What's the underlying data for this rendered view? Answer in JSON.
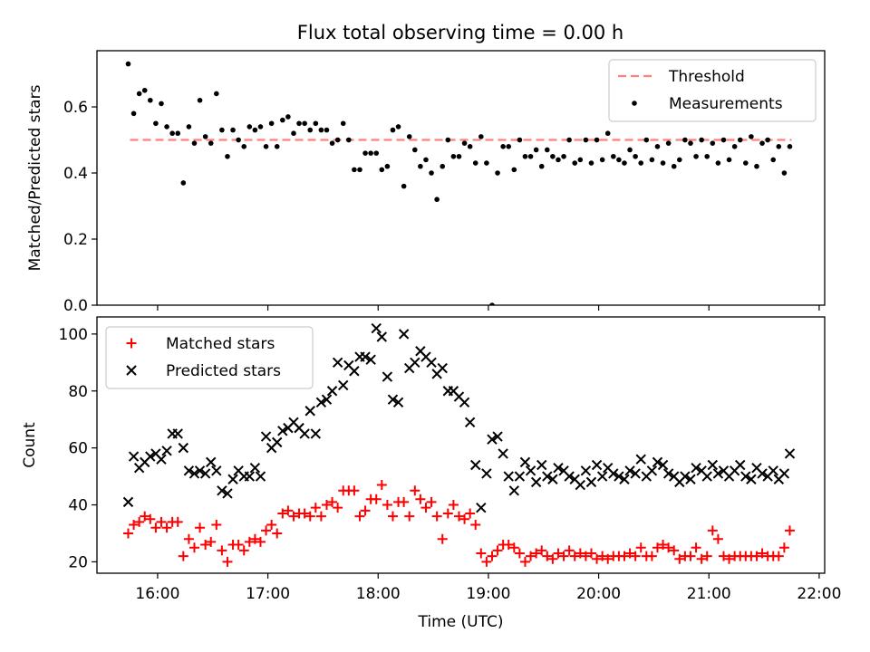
{
  "figure_title": "Flux total observing time = 0.00 h",
  "chart_data": [
    {
      "type": "scatter",
      "title": "Flux total observing time = 0.00 h",
      "xlabel": "",
      "ylabel": "Matched/Predicted stars",
      "x_unit": "time of day (UTC), HH:MM",
      "xlim": [
        "15:27",
        "22:03"
      ],
      "ylim": [
        0,
        0.77
      ],
      "yticks": [
        0.0,
        0.2,
        0.4,
        0.6
      ],
      "ytick_labels": [
        "0.0",
        "0.2",
        "0.4",
        "0.6"
      ],
      "xticks": [
        "16:00",
        "17:00",
        "18:00",
        "19:00",
        "20:00",
        "21:00",
        "22:00"
      ],
      "xtick_labels_visible": false,
      "grid": false,
      "legend": {
        "placement": "upper right",
        "entries": [
          "Threshold",
          "Measurements"
        ]
      },
      "series": [
        {
          "name": "Threshold",
          "kind": "dashed-line",
          "color": "#ff7f7f",
          "x": [
            "15:45",
            "21:45"
          ],
          "y": [
            0.5,
            0.5
          ]
        },
        {
          "name": "Measurements",
          "kind": "point",
          "color": "#000000",
          "x": [
            "15:44",
            "15:47",
            "15:50",
            "15:53",
            "15:56",
            "15:59",
            "16:02",
            "16:05",
            "16:08",
            "16:11",
            "16:14",
            "16:17",
            "16:20",
            "16:23",
            "16:26",
            "16:29",
            "16:32",
            "16:35",
            "16:38",
            "16:41",
            "16:44",
            "16:47",
            "16:50",
            "16:53",
            "16:56",
            "16:59",
            "17:02",
            "17:05",
            "17:08",
            "17:11",
            "17:14",
            "17:17",
            "17:20",
            "17:23",
            "17:26",
            "17:29",
            "17:32",
            "17:35",
            "17:38",
            "17:41",
            "17:44",
            "17:47",
            "17:50",
            "17:53",
            "17:56",
            "17:59",
            "18:02",
            "18:05",
            "18:08",
            "18:11",
            "18:14",
            "18:17",
            "18:20",
            "18:23",
            "18:26",
            "18:29",
            "18:32",
            "18:35",
            "18:38",
            "18:41",
            "18:44",
            "18:47",
            "18:50",
            "18:53",
            "18:56",
            "18:59",
            "19:02",
            "19:05",
            "19:08",
            "19:11",
            "19:14",
            "19:17",
            "19:20",
            "19:23",
            "19:26",
            "19:29",
            "19:32",
            "19:35",
            "19:38",
            "19:41",
            "19:44",
            "19:47",
            "19:50",
            "19:53",
            "19:56",
            "19:59",
            "20:02",
            "20:05",
            "20:08",
            "20:11",
            "20:14",
            "20:17",
            "20:20",
            "20:23",
            "20:26",
            "20:29",
            "20:32",
            "20:35",
            "20:38",
            "20:41",
            "20:44",
            "20:47",
            "20:50",
            "20:53",
            "20:56",
            "20:59",
            "21:02",
            "21:05",
            "21:08",
            "21:11",
            "21:14",
            "21:17",
            "21:20",
            "21:23",
            "21:26",
            "21:29",
            "21:32",
            "21:35",
            "21:38",
            "21:41",
            "21:44"
          ],
          "y": [
            0.73,
            0.58,
            0.64,
            0.65,
            0.62,
            0.55,
            0.61,
            0.54,
            0.52,
            0.52,
            0.37,
            0.54,
            0.49,
            0.62,
            0.51,
            0.49,
            0.64,
            0.53,
            0.45,
            0.53,
            0.5,
            0.48,
            0.54,
            0.53,
            0.54,
            0.48,
            0.55,
            0.48,
            0.56,
            0.57,
            0.52,
            0.55,
            0.55,
            0.53,
            0.55,
            0.53,
            0.53,
            0.49,
            0.5,
            0.55,
            0.5,
            0.41,
            0.41,
            0.46,
            0.46,
            0.46,
            0.41,
            0.42,
            0.53,
            0.54,
            0.36,
            0.51,
            0.47,
            0.42,
            0.44,
            0.4,
            0.32,
            0.42,
            0.5,
            0.45,
            0.45,
            0.49,
            0.48,
            0.43,
            0.51,
            0.43,
            0.0,
            0.4,
            0.48,
            0.48,
            0.41,
            0.5,
            0.45,
            0.45,
            0.47,
            0.42,
            0.47,
            0.45,
            0.44,
            0.45,
            0.5,
            0.43,
            0.44,
            0.5,
            0.43,
            0.5,
            0.44,
            0.52,
            0.45,
            0.44,
            0.43,
            0.47,
            0.45,
            0.43,
            0.5,
            0.44,
            0.48,
            0.43,
            0.49,
            0.42,
            0.44,
            0.5,
            0.49,
            0.45,
            0.5,
            0.45,
            0.49,
            0.43,
            0.5,
            0.44,
            0.48,
            0.5,
            0.43,
            0.51,
            0.42,
            0.49,
            0.5,
            0.44,
            0.48,
            0.4,
            0.48
          ]
        }
      ]
    },
    {
      "type": "scatter",
      "title": "",
      "xlabel": "Time (UTC)",
      "ylabel": "Count",
      "x_unit": "time of day (UTC), HH:MM",
      "xlim": [
        "15:27",
        "22:03"
      ],
      "ylim": [
        16,
        106
      ],
      "yticks": [
        20,
        40,
        60,
        80,
        100
      ],
      "ytick_labels": [
        "20",
        "40",
        "60",
        "80",
        "100"
      ],
      "xticks": [
        "16:00",
        "17:00",
        "18:00",
        "19:00",
        "20:00",
        "21:00",
        "22:00"
      ],
      "xtick_labels": [
        "16:00",
        "17:00",
        "18:00",
        "19:00",
        "20:00",
        "21:00",
        "22:00"
      ],
      "grid": false,
      "legend": {
        "placement": "upper left",
        "entries": [
          "Matched stars",
          "Predicted stars"
        ]
      },
      "series": [
        {
          "name": "Matched stars",
          "kind": "plus",
          "color": "#ff0000",
          "x": [
            "15:44",
            "15:47",
            "15:50",
            "15:53",
            "15:56",
            "15:59",
            "16:02",
            "16:05",
            "16:08",
            "16:11",
            "16:14",
            "16:17",
            "16:20",
            "16:23",
            "16:26",
            "16:29",
            "16:32",
            "16:35",
            "16:38",
            "16:41",
            "16:44",
            "16:47",
            "16:50",
            "16:53",
            "16:56",
            "16:59",
            "17:02",
            "17:05",
            "17:08",
            "17:11",
            "17:14",
            "17:17",
            "17:20",
            "17:23",
            "17:26",
            "17:29",
            "17:32",
            "17:35",
            "17:38",
            "17:41",
            "17:44",
            "17:47",
            "17:50",
            "17:53",
            "17:56",
            "17:59",
            "18:02",
            "18:05",
            "18:08",
            "18:11",
            "18:14",
            "18:17",
            "18:20",
            "18:23",
            "18:26",
            "18:29",
            "18:32",
            "18:35",
            "18:38",
            "18:41",
            "18:44",
            "18:47",
            "18:50",
            "18:53",
            "18:56",
            "18:59",
            "19:02",
            "19:05",
            "19:08",
            "19:11",
            "19:14",
            "19:17",
            "19:20",
            "19:23",
            "19:26",
            "19:29",
            "19:32",
            "19:35",
            "19:38",
            "19:41",
            "19:44",
            "19:47",
            "19:50",
            "19:53",
            "19:56",
            "19:59",
            "20:02",
            "20:05",
            "20:08",
            "20:11",
            "20:14",
            "20:17",
            "20:20",
            "20:23",
            "20:26",
            "20:29",
            "20:32",
            "20:35",
            "20:38",
            "20:41",
            "20:44",
            "20:47",
            "20:50",
            "20:53",
            "20:56",
            "20:59",
            "21:02",
            "21:05",
            "21:08",
            "21:11",
            "21:14",
            "21:17",
            "21:20",
            "21:23",
            "21:26",
            "21:29",
            "21:32",
            "21:35",
            "21:38",
            "21:41",
            "21:44"
          ],
          "y": [
            30,
            33,
            34,
            36,
            35,
            32,
            34,
            32,
            34,
            34,
            22,
            28,
            25,
            32,
            26,
            27,
            33,
            24,
            20,
            26,
            26,
            24,
            27,
            28,
            27,
            31,
            33,
            30,
            37,
            38,
            36,
            37,
            37,
            36,
            39,
            36,
            40,
            41,
            39,
            45,
            45,
            45,
            36,
            38,
            42,
            42,
            47,
            40,
            36,
            41,
            41,
            36,
            45,
            42,
            39,
            41,
            36,
            28,
            37,
            40,
            36,
            35,
            37,
            33,
            23,
            20,
            22,
            24,
            26,
            26,
            25,
            23,
            20,
            22,
            23,
            24,
            22,
            21,
            23,
            22,
            24,
            22,
            23,
            22,
            23,
            21,
            22,
            21,
            22,
            22,
            22,
            23,
            22,
            25,
            22,
            22,
            25,
            26,
            25,
            24,
            21,
            22,
            22,
            25,
            21,
            22,
            31,
            28,
            22,
            21,
            22,
            22,
            22,
            22,
            22,
            23,
            22,
            22,
            22,
            25,
            31
          ]
        },
        {
          "name": "Predicted stars",
          "kind": "x",
          "color": "#000000",
          "x": [
            "15:44",
            "15:47",
            "15:50",
            "15:53",
            "15:56",
            "15:59",
            "16:02",
            "16:05",
            "16:08",
            "16:11",
            "16:14",
            "16:17",
            "16:20",
            "16:23",
            "16:26",
            "16:29",
            "16:32",
            "16:35",
            "16:38",
            "16:41",
            "16:44",
            "16:47",
            "16:50",
            "16:53",
            "16:56",
            "16:59",
            "17:02",
            "17:05",
            "17:08",
            "17:11",
            "17:14",
            "17:17",
            "17:20",
            "17:23",
            "17:26",
            "17:29",
            "17:32",
            "17:35",
            "17:38",
            "17:41",
            "17:44",
            "17:47",
            "17:50",
            "17:53",
            "17:56",
            "17:59",
            "18:02",
            "18:05",
            "18:08",
            "18:11",
            "18:14",
            "18:17",
            "18:20",
            "18:23",
            "18:26",
            "18:29",
            "18:32",
            "18:35",
            "18:38",
            "18:41",
            "18:44",
            "18:47",
            "18:50",
            "18:53",
            "18:56",
            "18:59",
            "19:02",
            "19:05",
            "19:08",
            "19:11",
            "19:14",
            "19:17",
            "19:20",
            "19:23",
            "19:26",
            "19:29",
            "19:32",
            "19:35",
            "19:38",
            "19:41",
            "19:44",
            "19:47",
            "19:50",
            "19:53",
            "19:56",
            "19:59",
            "20:02",
            "20:05",
            "20:08",
            "20:11",
            "20:14",
            "20:17",
            "20:20",
            "20:23",
            "20:26",
            "20:29",
            "20:32",
            "20:35",
            "20:38",
            "20:41",
            "20:44",
            "20:47",
            "20:50",
            "20:53",
            "20:56",
            "20:59",
            "21:02",
            "21:05",
            "21:08",
            "21:11",
            "21:14",
            "21:17",
            "21:20",
            "21:23",
            "21:26",
            "21:29",
            "21:32",
            "21:35",
            "21:38",
            "21:41",
            "21:44"
          ],
          "y": [
            41,
            57,
            53,
            55,
            57,
            58,
            56,
            59,
            65,
            65,
            60,
            52,
            51,
            52,
            51,
            55,
            52,
            45,
            44,
            49,
            52,
            50,
            50,
            53,
            50,
            64,
            60,
            62,
            66,
            67,
            69,
            67,
            65,
            73,
            65,
            76,
            77,
            80,
            90,
            82,
            89,
            87,
            92,
            92,
            91,
            102,
            99,
            85,
            77,
            76,
            100,
            88,
            90,
            94,
            92,
            90,
            86,
            88,
            80,
            80,
            78,
            76,
            69,
            54,
            39,
            51,
            63,
            64,
            58,
            50,
            45,
            50,
            55,
            52,
            48,
            54,
            50,
            49,
            53,
            52,
            50,
            49,
            47,
            52,
            48,
            54,
            50,
            53,
            51,
            50,
            49,
            52,
            51,
            56,
            50,
            52,
            55,
            54,
            51,
            50,
            48,
            50,
            49,
            53,
            52,
            50,
            54,
            51,
            52,
            50,
            52,
            54,
            50,
            49,
            53,
            51,
            50,
            52,
            49,
            51,
            58
          ]
        }
      ]
    }
  ]
}
